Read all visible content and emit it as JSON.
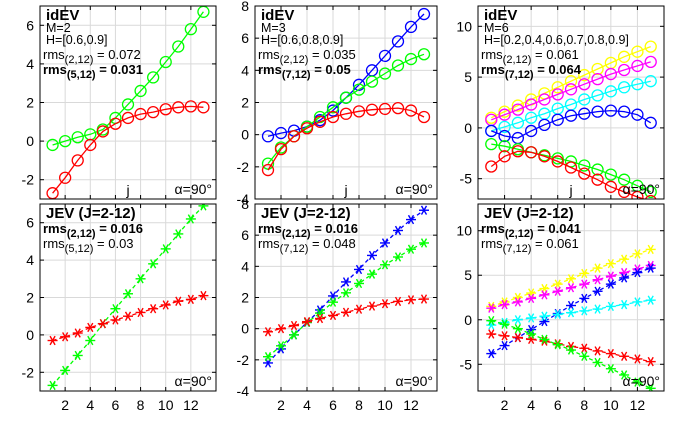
{
  "colors": {
    "red": "#ff0000",
    "green": "#00ff00",
    "blue": "#0000ff",
    "yellow": "#ffff00",
    "magenta": "#ff00ff",
    "cyan": "#00ffff",
    "frame": "#000000",
    "grid": "#d9d9d9"
  },
  "chart_data": [
    {
      "type": "line",
      "marker": "circle",
      "title": "idEV",
      "info": [
        "M=2",
        "H=[0.6,0.9]"
      ],
      "rms": [
        {
          "label": "rms",
          "sub": "(2,12)",
          "value": "= 0.072",
          "bold": false
        },
        {
          "label": "rms",
          "sub": "(5,12)",
          "value": "= 0.031",
          "bold": true
        }
      ],
      "xlabel": "j",
      "angle_label": "α=90°",
      "x": [
        1,
        2,
        3,
        4,
        5,
        6,
        7,
        8,
        9,
        10,
        11,
        12,
        13
      ],
      "xlim": [
        0,
        14
      ],
      "ylim": [
        -3,
        7
      ],
      "yticks": [
        -2,
        0,
        2,
        4,
        6
      ],
      "xticks": [
        2,
        4,
        6,
        8,
        10,
        12
      ],
      "grid": true,
      "series": [
        {
          "color": "green",
          "values": [
            -0.2,
            0.0,
            0.2,
            0.35,
            0.6,
            1.2,
            1.9,
            2.6,
            3.3,
            4.1,
            4.9,
            5.8,
            6.7
          ]
        },
        {
          "color": "red",
          "values": [
            -2.7,
            -1.9,
            -1.0,
            -0.2,
            0.5,
            0.9,
            1.2,
            1.4,
            1.5,
            1.65,
            1.75,
            1.8,
            1.75
          ]
        }
      ]
    },
    {
      "type": "line",
      "marker": "circle",
      "title": "idEV",
      "info": [
        "M=3",
        "H=[0.6,0.8,0.9]"
      ],
      "rms": [
        {
          "label": "rms",
          "sub": "(2,12)",
          "value": "= 0.035",
          "bold": false
        },
        {
          "label": "rms",
          "sub": "(7,12)",
          "value": "= 0.05",
          "bold": true
        }
      ],
      "xlabel": "j",
      "angle_label": "α=90°",
      "x": [
        1,
        2,
        3,
        4,
        5,
        6,
        7,
        8,
        9,
        10,
        11,
        12,
        13
      ],
      "xlim": [
        0,
        14
      ],
      "ylim": [
        -4,
        8
      ],
      "yticks": [
        -4,
        -2,
        0,
        2,
        4,
        6,
        8
      ],
      "xticks": [
        2,
        4,
        6,
        8,
        10,
        12
      ],
      "grid": true,
      "series": [
        {
          "color": "blue",
          "values": [
            -0.1,
            0.1,
            0.25,
            0.5,
            0.9,
            1.5,
            2.3,
            3.1,
            4.0,
            4.9,
            5.8,
            6.7,
            7.5
          ]
        },
        {
          "color": "green",
          "values": [
            -1.8,
            -0.8,
            -0.1,
            0.5,
            1.1,
            1.7,
            2.3,
            2.8,
            3.3,
            3.8,
            4.3,
            4.7,
            5.0
          ]
        },
        {
          "color": "red",
          "values": [
            -2.2,
            -0.9,
            -0.1,
            0.4,
            0.8,
            1.1,
            1.3,
            1.45,
            1.55,
            1.6,
            1.65,
            1.5,
            1.1
          ]
        }
      ]
    },
    {
      "type": "line",
      "marker": "circle",
      "title": "idEV",
      "info": [
        "M=6",
        "H=[0.2,0.4,0.6,0.7,0.8,0.9]"
      ],
      "rms": [
        {
          "label": "rms",
          "sub": "(2,12)",
          "value": "= 0.061",
          "bold": false
        },
        {
          "label": "rms",
          "sub": "(7,12)",
          "value": "= 0.064",
          "bold": true
        }
      ],
      "xlabel": "j",
      "angle_label": "α=90°",
      "x": [
        1,
        2,
        3,
        4,
        5,
        6,
        7,
        8,
        9,
        10,
        11,
        12,
        13
      ],
      "xlim": [
        0,
        14
      ],
      "ylim": [
        -7,
        12
      ],
      "yticks": [
        -5,
        0,
        5,
        10
      ],
      "xticks": [
        2,
        4,
        6,
        8,
        10,
        12
      ],
      "grid": true,
      "series": [
        {
          "color": "yellow",
          "values": [
            1.0,
            1.6,
            2.2,
            2.8,
            3.4,
            4.0,
            4.6,
            5.2,
            5.8,
            6.4,
            7.0,
            7.5,
            8.0
          ]
        },
        {
          "color": "magenta",
          "values": [
            0.8,
            1.3,
            1.8,
            2.3,
            2.8,
            3.3,
            3.8,
            4.3,
            4.8,
            5.3,
            5.7,
            6.1,
            6.5
          ]
        },
        {
          "color": "cyan",
          "values": [
            -0.3,
            0.1,
            0.5,
            1.0,
            1.4,
            1.9,
            2.3,
            2.8,
            3.2,
            3.6,
            4.0,
            4.3,
            4.6
          ]
        },
        {
          "color": "blue",
          "values": [
            -0.3,
            -0.8,
            -1.0,
            -0.3,
            0.3,
            0.8,
            1.2,
            1.4,
            1.6,
            1.7,
            1.6,
            1.3,
            0.5
          ]
        },
        {
          "color": "green",
          "values": [
            -1.6,
            -1.8,
            -2.1,
            -2.4,
            -2.7,
            -3.0,
            -3.3,
            -3.7,
            -4.1,
            -4.6,
            -5.1,
            -5.7,
            -6.3
          ]
        },
        {
          "color": "red",
          "values": [
            -3.8,
            -2.8,
            -2.3,
            -2.4,
            -2.8,
            -3.3,
            -3.9,
            -4.5,
            -5.1,
            -5.8,
            -6.3,
            -6.8,
            -7.2
          ]
        }
      ]
    },
    {
      "type": "line",
      "marker": "asterisk",
      "title": "JEV (J=2-12)",
      "info": [],
      "rms": [
        {
          "label": "rms",
          "sub": "(2,12)",
          "value": "= 0.016",
          "bold": true
        },
        {
          "label": "rms",
          "sub": "(5,12)",
          "value": "= 0.03",
          "bold": false
        }
      ],
      "xlabel": "",
      "angle_label": "α=90°",
      "x": [
        1,
        2,
        3,
        4,
        5,
        6,
        7,
        8,
        9,
        10,
        11,
        12,
        13
      ],
      "xlim": [
        0,
        14
      ],
      "ylim": [
        -3,
        7
      ],
      "yticks": [
        -2,
        0,
        2,
        4,
        6
      ],
      "xticks": [
        2,
        4,
        6,
        8,
        10,
        12
      ],
      "grid": true,
      "series": [
        {
          "color": "green",
          "values": [
            -2.7,
            -1.9,
            -1.1,
            -0.3,
            0.6,
            1.4,
            2.2,
            3.0,
            3.8,
            4.6,
            5.4,
            6.2,
            6.9
          ]
        },
        {
          "color": "red",
          "values": [
            -0.3,
            -0.1,
            0.1,
            0.4,
            0.6,
            0.8,
            1.0,
            1.2,
            1.4,
            1.6,
            1.8,
            1.9,
            2.1
          ]
        }
      ]
    },
    {
      "type": "line",
      "marker": "asterisk",
      "title": "JEV (J=2-12)",
      "info": [],
      "rms": [
        {
          "label": "rms",
          "sub": "(2,12)",
          "value": "= 0.016",
          "bold": true
        },
        {
          "label": "rms",
          "sub": "(7,12)",
          "value": "= 0.048",
          "bold": false
        }
      ],
      "xlabel": "",
      "angle_label": "α=90°",
      "x": [
        1,
        2,
        3,
        4,
        5,
        6,
        7,
        8,
        9,
        10,
        11,
        12,
        13
      ],
      "xlim": [
        0,
        14
      ],
      "ylim": [
        -4,
        8
      ],
      "yticks": [
        -4,
        -2,
        0,
        2,
        4,
        6,
        8
      ],
      "xticks": [
        2,
        4,
        6,
        8,
        10,
        12
      ],
      "grid": true,
      "series": [
        {
          "color": "blue",
          "values": [
            -2.2,
            -1.3,
            -0.4,
            0.4,
            1.2,
            2.1,
            3.0,
            3.8,
            4.7,
            5.5,
            6.3,
            7.0,
            7.6
          ]
        },
        {
          "color": "green",
          "values": [
            -1.8,
            -1.1,
            -0.4,
            0.4,
            1.0,
            1.7,
            2.3,
            2.9,
            3.5,
            4.1,
            4.6,
            5.1,
            5.5
          ]
        },
        {
          "color": "red",
          "values": [
            -0.2,
            0.0,
            0.2,
            0.45,
            0.65,
            0.85,
            1.05,
            1.25,
            1.45,
            1.6,
            1.75,
            1.85,
            1.9
          ]
        }
      ]
    },
    {
      "type": "line",
      "marker": "asterisk",
      "title": "JEV (J=2-12)",
      "info": [],
      "rms": [
        {
          "label": "rms",
          "sub": "(2,12)",
          "value": "= 0.041",
          "bold": true
        },
        {
          "label": "rms",
          "sub": "(7,12)",
          "value": "= 0.061",
          "bold": false
        }
      ],
      "xlabel": "",
      "angle_label": "α=90°",
      "x": [
        1,
        2,
        3,
        4,
        5,
        6,
        7,
        8,
        9,
        10,
        11,
        12,
        13
      ],
      "xlim": [
        0,
        14
      ],
      "ylim": [
        -8,
        13
      ],
      "yticks": [
        -5,
        0,
        5,
        10
      ],
      "xticks": [
        2,
        4,
        6,
        8,
        10,
        12
      ],
      "grid": true,
      "series": [
        {
          "color": "yellow",
          "values": [
            1.5,
            2.0,
            2.5,
            3.0,
            3.5,
            4.0,
            4.6,
            5.2,
            5.8,
            6.3,
            6.8,
            7.4,
            7.9
          ]
        },
        {
          "color": "magenta",
          "values": [
            1.3,
            1.7,
            2.0,
            2.4,
            2.8,
            3.2,
            3.6,
            4.0,
            4.5,
            4.9,
            5.3,
            5.7,
            6.1
          ]
        },
        {
          "color": "blue",
          "values": [
            -3.8,
            -2.9,
            -2.0,
            -1.1,
            -0.2,
            0.7,
            1.6,
            2.4,
            3.2,
            4.0,
            4.7,
            5.3,
            5.8
          ]
        },
        {
          "color": "cyan",
          "values": [
            -0.6,
            -0.3,
            0.0,
            0.2,
            0.4,
            0.6,
            0.8,
            1.0,
            1.2,
            1.5,
            1.7,
            2.0,
            2.2
          ]
        },
        {
          "color": "red",
          "values": [
            -1.6,
            -1.8,
            -2.0,
            -2.2,
            -2.4,
            -2.7,
            -3.0,
            -3.2,
            -3.5,
            -3.8,
            -4.1,
            -4.4,
            -4.7
          ]
        },
        {
          "color": "green",
          "values": [
            -0.1,
            -0.5,
            -1.0,
            -1.6,
            -2.2,
            -2.8,
            -3.4,
            -4.1,
            -4.8,
            -5.5,
            -6.2,
            -7.0,
            -7.7
          ]
        }
      ]
    }
  ]
}
